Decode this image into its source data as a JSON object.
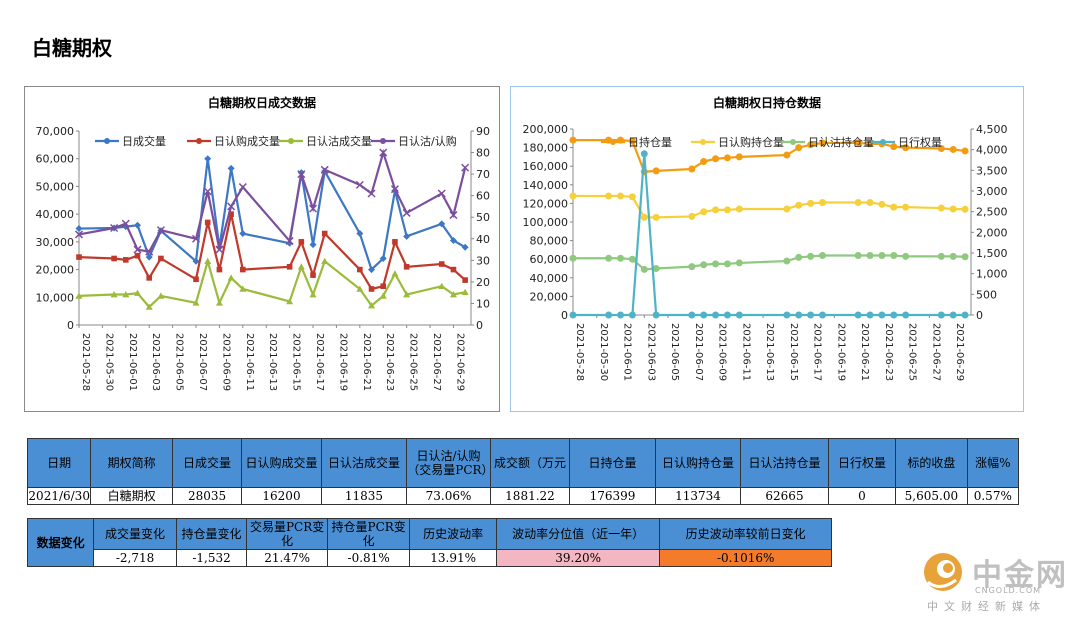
{
  "page_title": "白糖期权",
  "chart_data": [
    {
      "type": "line",
      "title": "白糖期权日成交数据",
      "categories": [
        "2021-05-28",
        "2021-05-31",
        "2021-06-01",
        "2021-06-02",
        "2021-06-03",
        "2021-06-04",
        "2021-06-07",
        "2021-06-08",
        "2021-06-09",
        "2021-06-10",
        "2021-06-11",
        "2021-06-15",
        "2021-06-16",
        "2021-06-17",
        "2021-06-18",
        "2021-06-21",
        "2021-06-22",
        "2021-06-23",
        "2021-06-24",
        "2021-06-25",
        "2021-06-28",
        "2021-06-29",
        "2021-06-30"
      ],
      "tick_labels": [
        "2021-05-28",
        "2021-05-30",
        "2021-06-01",
        "2021-06-03",
        "2021-06-05",
        "2021-06-07",
        "2021-06-09",
        "2021-06-11",
        "2021-06-13",
        "2021-06-15",
        "2021-06-17",
        "2021-06-19",
        "2021-06-21",
        "2021-06-23",
        "2021-06-25",
        "2021-06-27",
        "2021-06-29"
      ],
      "y_left": {
        "ticks": [
          "0",
          "10,000",
          "20,000",
          "30,000",
          "40,000",
          "50,000",
          "60,000",
          "70,000"
        ],
        "ylim": [
          0,
          70000
        ]
      },
      "y_right": {
        "ticks": [
          "0",
          "10",
          "20",
          "30",
          "40",
          "50",
          "60",
          "70",
          "80",
          "90"
        ],
        "ylim": [
          0,
          90
        ]
      },
      "legend_position": "top",
      "series": [
        {
          "name": "日成交量",
          "axis": "left",
          "color": "#3c78c3",
          "marker": "diamond",
          "values": [
            34800,
            35000,
            35500,
            36000,
            24500,
            34000,
            23000,
            60000,
            28000,
            56500,
            33000,
            29500,
            55000,
            29000,
            55500,
            33000,
            20000,
            24000,
            48500,
            32000,
            36500,
            30500,
            28035
          ]
        },
        {
          "name": "日认购成交量",
          "axis": "left",
          "color": "#c0392b",
          "marker": "square",
          "values": [
            24500,
            24000,
            23500,
            25000,
            17000,
            24000,
            16500,
            37000,
            20000,
            40000,
            20000,
            21000,
            30000,
            18000,
            33000,
            20000,
            13000,
            14000,
            30000,
            21000,
            22000,
            20000,
            16200
          ]
        },
        {
          "name": "日认沽成交量",
          "axis": "left",
          "color": "#9bbb3a",
          "marker": "triangle",
          "values": [
            10500,
            11000,
            11000,
            11500,
            6500,
            10500,
            8000,
            23000,
            8000,
            17000,
            13000,
            8500,
            21000,
            11000,
            23000,
            13000,
            7000,
            10500,
            18500,
            11000,
            14000,
            11000,
            11835
          ]
        },
        {
          "name": "日认沽/认购",
          "axis": "right",
          "color": "#7b4f9d",
          "marker": "x",
          "values": [
            42,
            45,
            47,
            35,
            34,
            44,
            40,
            62,
            35,
            55,
            64,
            39,
            70,
            54,
            72,
            65,
            61,
            80,
            63,
            52,
            61,
            51,
            73
          ]
        }
      ]
    },
    {
      "type": "line",
      "title": "白糖期权日持仓数据",
      "categories": [
        "2021-05-28",
        "2021-05-31",
        "2021-06-01",
        "2021-06-02",
        "2021-06-03",
        "2021-06-04",
        "2021-06-07",
        "2021-06-08",
        "2021-06-09",
        "2021-06-10",
        "2021-06-11",
        "2021-06-15",
        "2021-06-16",
        "2021-06-17",
        "2021-06-18",
        "2021-06-21",
        "2021-06-22",
        "2021-06-23",
        "2021-06-24",
        "2021-06-25",
        "2021-06-28",
        "2021-06-29",
        "2021-06-30"
      ],
      "tick_labels": [
        "2021-05-28",
        "2021-05-30",
        "2021-06-01",
        "2021-06-03",
        "2021-06-05",
        "2021-06-07",
        "2021-06-09",
        "2021-06-11",
        "2021-06-13",
        "2021-06-15",
        "2021-06-17",
        "2021-06-19",
        "2021-06-21",
        "2021-06-23",
        "2021-06-25",
        "2021-06-27",
        "2021-06-29"
      ],
      "y_left": {
        "ticks": [
          "0",
          "20,000",
          "40,000",
          "60,000",
          "80,000",
          "100,000",
          "120,000",
          "140,000",
          "160,000",
          "180,000",
          "200,000"
        ],
        "ylim": [
          0,
          200000
        ]
      },
      "y_right": {
        "ticks": [
          "0",
          "500",
          "1,000",
          "1,500",
          "2,000",
          "2,500",
          "3,000",
          "3,500",
          "4,000",
          "4,500"
        ],
        "ylim": [
          0,
          4500
        ]
      },
      "legend_position": "top",
      "series": [
        {
          "name": "日持仓量",
          "axis": "left",
          "color": "#f39c12",
          "marker": "circle",
          "values": [
            188000,
            188000,
            188000,
            187000,
            154000,
            155000,
            157000,
            165000,
            168000,
            169000,
            170000,
            172000,
            180000,
            183000,
            185000,
            185000,
            184000,
            184000,
            181000,
            180000,
            179000,
            178000,
            176399
          ]
        },
        {
          "name": "日认购持仓量",
          "axis": "left",
          "color": "#f5d03b",
          "marker": "circle",
          "values": [
            128000,
            128000,
            128000,
            127000,
            105000,
            105000,
            106000,
            111000,
            113000,
            113000,
            114000,
            114000,
            118000,
            120000,
            121000,
            121000,
            121000,
            119000,
            116000,
            116000,
            115000,
            114000,
            113734
          ]
        },
        {
          "name": "日认沽持仓量",
          "axis": "left",
          "color": "#8fc97f",
          "marker": "circle",
          "values": [
            61000,
            61000,
            61000,
            60000,
            49000,
            50000,
            52000,
            54000,
            55000,
            55000,
            56000,
            58000,
            62000,
            63000,
            64000,
            64000,
            64000,
            64000,
            64000,
            63000,
            63000,
            63000,
            62665
          ]
        },
        {
          "name": "日行权量",
          "axis": "right",
          "color": "#4fb3c8",
          "marker": "circle",
          "values": [
            0,
            0,
            0,
            0,
            3900,
            0,
            0,
            0,
            0,
            0,
            0,
            0,
            0,
            0,
            0,
            0,
            0,
            0,
            0,
            0,
            0,
            0,
            0
          ]
        }
      ]
    }
  ],
  "table1": {
    "headers": [
      "日期",
      "期权简称",
      "日成交量",
      "日认购成交量",
      "日认沽成交量",
      "日认沽/认购（交易量PCR）",
      "成交额（万元",
      "日持仓量",
      "日认购持仓量",
      "日认沽持仓量",
      "日行权量",
      "标的收盘",
      "涨幅%"
    ],
    "values": [
      "2021/6/30",
      "白糖期权",
      "28035",
      "16200",
      "11835",
      "73.06%",
      "1881.22",
      "176399",
      "113734",
      "62665",
      "0",
      "5,605.00",
      "0.57%"
    ]
  },
  "table2": {
    "lead": "数据变化",
    "headers": [
      "成交量变化",
      "持仓量变化",
      "交易量PCR变化",
      "持仓量PCR变化",
      "历史波动率",
      "波动率分位值（近一年）",
      "历史波动率较前日变化"
    ],
    "values": [
      "-2,718",
      "-1,532",
      "21.47%",
      "-0.81%",
      "13.91%",
      "39.20%",
      "-0.1016%"
    ],
    "highlight_colors": {
      "percentile": "#f4b6c2",
      "change": "#f47b2a"
    }
  },
  "logo": {
    "name": "中金网",
    "sub_en": "CNGOLD.COM",
    "sub_cn": "中文财经新媒体",
    "color": "#e8a23a"
  }
}
